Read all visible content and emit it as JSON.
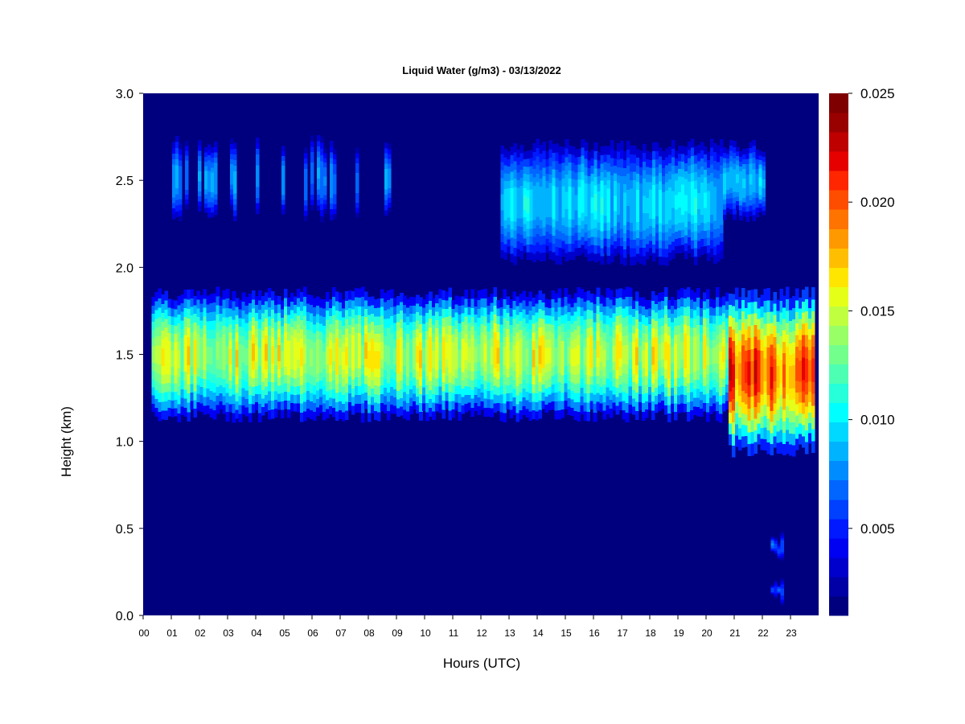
{
  "chart_data": {
    "type": "heatmap",
    "title": "Liquid Water (g/m3) - 03/13/2022",
    "xlabel": "Hours (UTC)",
    "ylabel": "Height (km)",
    "xlim": [
      0,
      24
    ],
    "ylim": [
      0,
      3.0
    ],
    "x_ticks": [
      "00",
      "01",
      "02",
      "03",
      "04",
      "05",
      "06",
      "07",
      "08",
      "09",
      "10",
      "11",
      "12",
      "13",
      "14",
      "15",
      "16",
      "17",
      "18",
      "19",
      "20",
      "21",
      "22",
      "23"
    ],
    "y_ticks": [
      "0.0",
      "0.5",
      "1.0",
      "1.5",
      "2.0",
      "2.5",
      "3.0"
    ],
    "colorbar": {
      "min": 0.001,
      "max": 0.025,
      "ticks": [
        "0.005",
        "0.010",
        "0.015",
        "0.020",
        "0.025"
      ],
      "colors": [
        "#00007f",
        "#0000a6",
        "#0000cc",
        "#0000f2",
        "#0019ff",
        "#0040ff",
        "#0066ff",
        "#008cff",
        "#00b3ff",
        "#00d9ff",
        "#00ffff",
        "#26ffd9",
        "#4dffb3",
        "#73ff8c",
        "#99ff66",
        "#c0ff40",
        "#e6ff19",
        "#ffe600",
        "#ffbf00",
        "#ff9900",
        "#ff7300",
        "#ff4d00",
        "#ff2600",
        "#e60000",
        "#bf0000",
        "#990000",
        "#7f0000"
      ]
    },
    "background_color": "#00007f",
    "layers": [
      {
        "name": "upper cloud",
        "x_start": 12.7,
        "x_end": 20.6,
        "y_bottom": 2.05,
        "y_top": 2.7,
        "peak": 0.01
      },
      {
        "name": "upper cloud extension",
        "x_start": 20.6,
        "x_end": 22.1,
        "y_bottom": 2.3,
        "y_top": 2.7,
        "peak": 0.0095
      },
      {
        "name": "scattered upper streaks",
        "x_start": 0.8,
        "x_end": 8.8,
        "y_bottom": 2.3,
        "y_top": 2.72,
        "peak": 0.008
      },
      {
        "name": "main cloud layer",
        "x_start": 0.3,
        "x_end": 20.8,
        "y_bottom": 1.15,
        "y_top": 1.85,
        "peak": 0.016
      },
      {
        "name": "late thick cloud",
        "x_start": 20.8,
        "x_end": 23.85,
        "y_bottom": 0.95,
        "y_top": 1.85,
        "peak": 0.0215
      },
      {
        "name": "low blip 1",
        "x_start": 22.3,
        "x_end": 22.75,
        "y_bottom": 0.35,
        "y_top": 0.45,
        "peak": 0.007
      },
      {
        "name": "low blip 2",
        "x_start": 22.3,
        "x_end": 22.75,
        "y_bottom": 0.1,
        "y_top": 0.2,
        "peak": 0.006
      }
    ]
  }
}
